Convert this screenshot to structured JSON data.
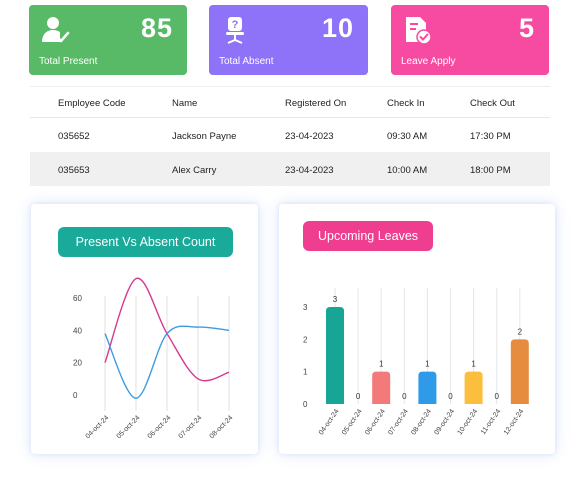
{
  "stats": {
    "present": {
      "value": "85",
      "label": "Total Present",
      "color": "#58b967",
      "icon": "user-check-icon"
    },
    "absent": {
      "value": "10",
      "label": "Total Absent",
      "color": "#8e72f8",
      "icon": "empty-chair-question-icon"
    },
    "leave": {
      "value": "5",
      "label": "Leave Apply",
      "color": "#f64ba0",
      "icon": "document-check-icon"
    }
  },
  "table": {
    "headers": [
      "Employee Code",
      "Name",
      "Registered On",
      "Check In",
      "Check Out"
    ],
    "rows": [
      [
        "035652",
        "Jackson Payne",
        "23-04-2023",
        "09:30 AM",
        "17:30 PM"
      ],
      [
        "035653",
        "Alex Carry",
        "23-04-2023",
        "10:00 AM",
        "18:00 PM"
      ]
    ]
  },
  "panels": {
    "left_title": "Present Vs Absent Count",
    "right_title": "Upcoming Leaves"
  },
  "chart_data": [
    {
      "type": "line",
      "x": [
        "04-oct-24",
        "05-oct-24",
        "06-oct-24",
        "07-oct-24",
        "08-oct-24"
      ],
      "ylim": [
        0,
        60
      ],
      "y_ticks": [
        0,
        20,
        40,
        60
      ],
      "series": [
        {
          "values": [
            20,
            72,
            38,
            10,
            14
          ],
          "color": "#d6388e"
        },
        {
          "values": [
            38,
            -2,
            38,
            42,
            40
          ],
          "color": "#3b9ce0"
        }
      ],
      "grid": "vertical"
    },
    {
      "type": "bar",
      "categories": [
        "04-oct-24",
        "05-oct-24",
        "06-oct-24",
        "07-oct-24",
        "08-oct-24",
        "09-oct-24",
        "10-oct-24",
        "11-oct-24",
        "12-oct-24"
      ],
      "values": [
        3,
        0,
        1,
        0,
        1,
        0,
        1,
        0,
        2
      ],
      "colors": [
        "#17a696",
        "#17a696",
        "#f27a7a",
        "#2e9ae8",
        "#2e9ae8",
        "#fbbf3d",
        "#fbbf3d",
        "#e68c3e",
        "#e68c3e"
      ],
      "ylim": [
        0,
        3
      ],
      "y_ticks": [
        0,
        1,
        2,
        3
      ],
      "data_labels": [
        "3",
        "0",
        "1",
        "0",
        "1",
        "0",
        "1",
        "0",
        "2"
      ]
    }
  ]
}
